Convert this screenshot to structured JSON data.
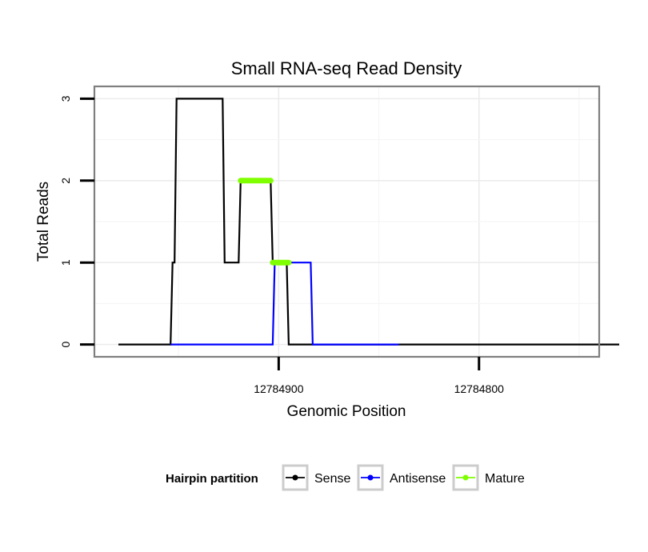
{
  "chart_data": {
    "type": "line",
    "title": "Small RNA-seq Read Density",
    "xlabel": "Genomic Position",
    "ylabel": "Total Reads",
    "x_reversed": true,
    "xlim": [
      12784992,
      12784740
    ],
    "ylim": [
      -0.15,
      3.15
    ],
    "x_ticks": [
      12784900,
      12784800
    ],
    "x_tick_labels": [
      "12784900",
      "12784800"
    ],
    "y_ticks": [
      0,
      1,
      2,
      3
    ],
    "y_tick_labels": [
      "0",
      "1",
      "2",
      "3"
    ],
    "grid": true,
    "legend": {
      "title": "Hairpin partition",
      "position": "bottom",
      "entries": [
        {
          "label": "Sense",
          "color": "#000000"
        },
        {
          "label": "Antisense",
          "color": "#0000ff"
        },
        {
          "label": "Mature",
          "color": "#7fff00"
        }
      ]
    },
    "series": [
      {
        "name": "Sense",
        "color": "#000000",
        "x": [
          12784980,
          12784954,
          12784953,
          12784952,
          12784951,
          12784928,
          12784927,
          12784920,
          12784919,
          12784904,
          12784903,
          12784896,
          12784895,
          12784890,
          12784889,
          12784840,
          12784730
        ],
        "y": [
          0,
          0,
          1,
          1,
          3,
          3,
          1,
          1,
          2,
          2,
          1,
          1,
          0,
          0,
          0,
          0,
          0
        ]
      },
      {
        "name": "Antisense",
        "color": "#0000ff",
        "x": [
          12784954,
          12784903,
          12784902,
          12784884,
          12784883,
          12784840
        ],
        "y": [
          0,
          0,
          1,
          1,
          0,
          0
        ]
      },
      {
        "name": "Mature",
        "color": "#7fff00",
        "segments": [
          {
            "x": [
              12784919,
              12784904
            ],
            "y": [
              2,
              2
            ]
          },
          {
            "x": [
              12784903,
              12784895
            ],
            "y": [
              1,
              1
            ]
          }
        ]
      }
    ]
  }
}
